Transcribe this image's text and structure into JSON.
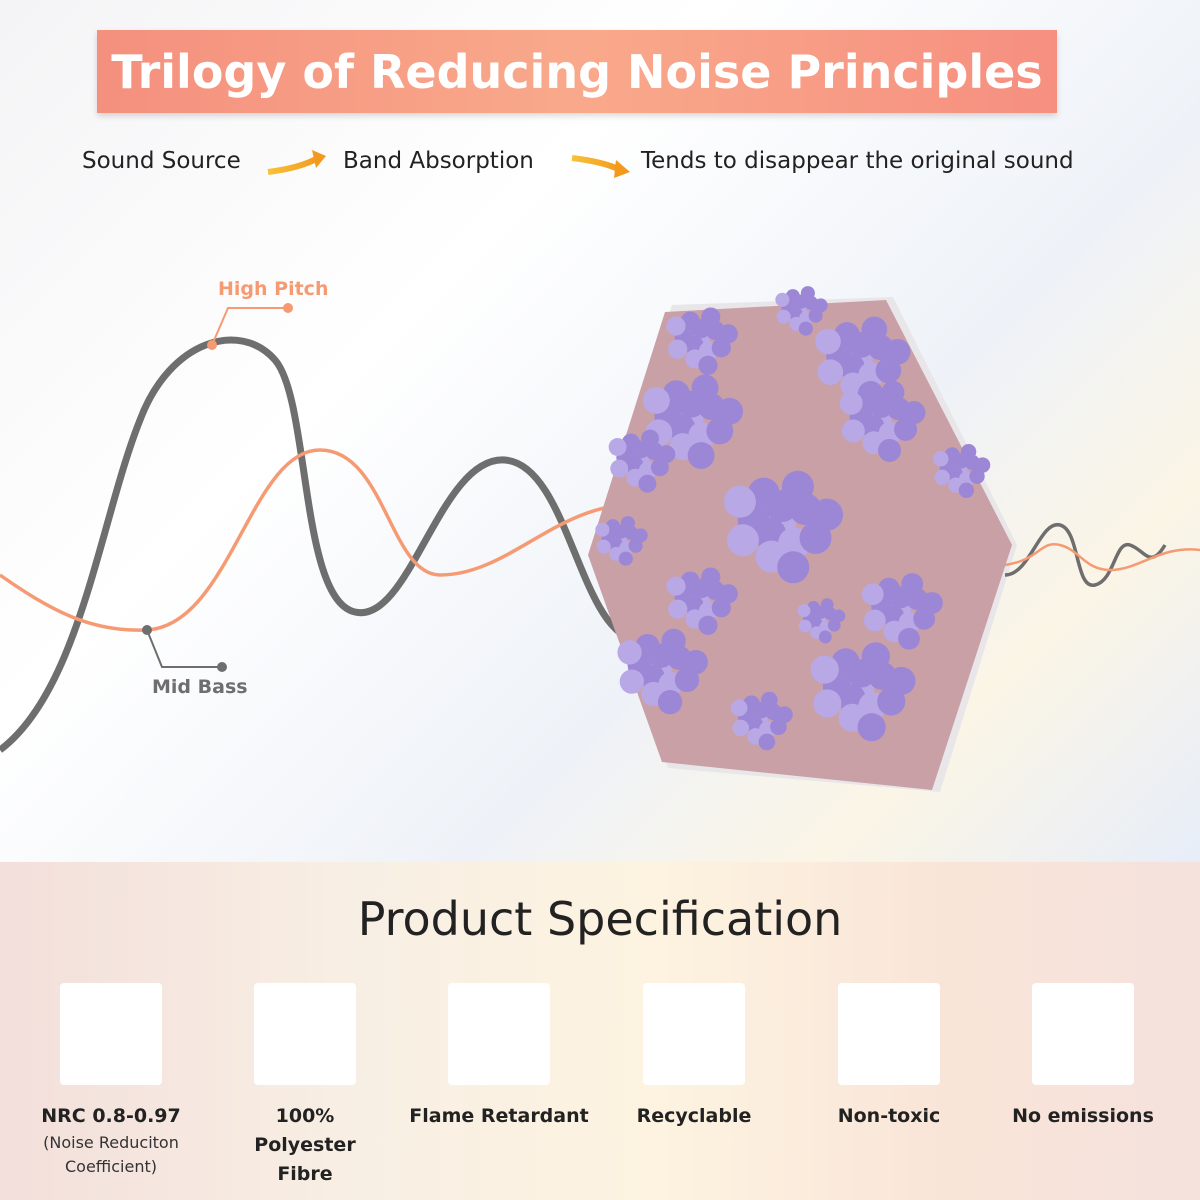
{
  "header": {
    "title": "Trilogy of Reducing Noise Principles"
  },
  "flow": [
    "Sound Source",
    "Band Absorption",
    "Tends to disappear the original sound"
  ],
  "wave_labels": {
    "high": "High Pitch",
    "low": "Mid Bass"
  },
  "spec": {
    "title": "Product Specification",
    "items": [
      {
        "label": "NRC 0.8-0.97",
        "note": "(Noise Reduciton Coefficient)"
      },
      {
        "label": "100% Polyester Fibre"
      },
      {
        "label": "Flame Retardant"
      },
      {
        "label": "Recyclable"
      },
      {
        "label": "Non-toxic"
      },
      {
        "label": "No emissions"
      }
    ]
  }
}
